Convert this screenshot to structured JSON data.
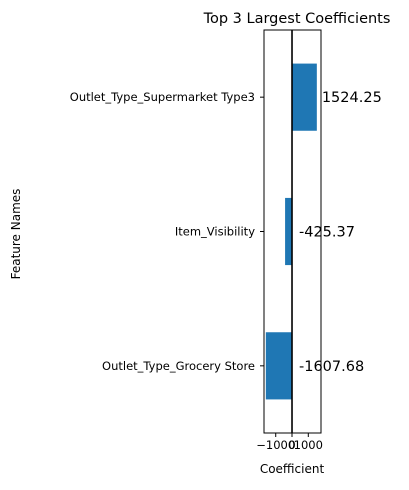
{
  "chart_data": {
    "type": "bar",
    "orientation": "horizontal",
    "title": "Top 3 Largest Coefficients",
    "xlabel": "Coefficient",
    "ylabel": "Feature Names",
    "categories": [
      "Outlet_Type_Supermarket Type3",
      "Item_Visibility",
      "Outlet_Type_Grocery Store"
    ],
    "values": [
      1524.25,
      -425.37,
      -1607.68
    ],
    "data_labels": [
      "1524.25",
      "-425.37",
      "-1607.68"
    ],
    "xlim": [
      -1720,
      1780
    ],
    "xticks": [
      -1000,
      0,
      1000
    ],
    "xtick_labels": [
      "−1000",
      "0",
      "1000"
    ],
    "zero_line": true,
    "grid": false,
    "bar_color": "#1f77b4"
  }
}
